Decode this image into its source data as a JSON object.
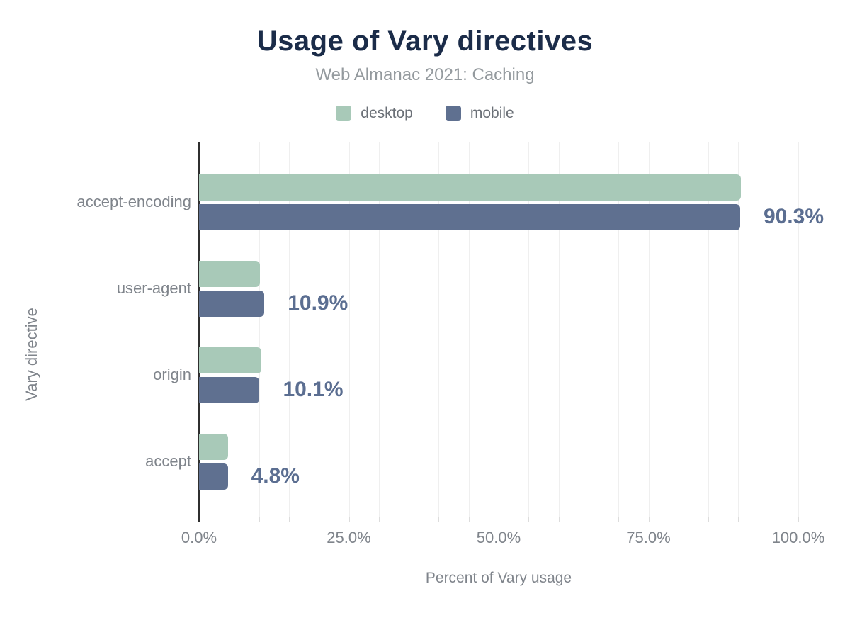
{
  "header": {
    "title": "Usage of Vary directives",
    "subtitle": "Web Almanac 2021: Caching"
  },
  "legend": [
    {
      "label": "desktop",
      "color": "#a8c9b8"
    },
    {
      "label": "mobile",
      "color": "#5f7090"
    }
  ],
  "axes": {
    "xlabel": "Percent of Vary usage",
    "ylabel": "Vary directive"
  },
  "chart_data": {
    "type": "bar",
    "orientation": "horizontal",
    "title": "Usage of Vary directives",
    "subtitle": "Web Almanac 2021: Caching",
    "categories": [
      "accept-encoding",
      "user-agent",
      "origin",
      "accept"
    ],
    "series": [
      {
        "name": "desktop",
        "color": "#a8c9b8",
        "values": [
          90.4,
          10.2,
          10.4,
          4.9
        ]
      },
      {
        "name": "mobile",
        "color": "#5f7090",
        "values": [
          90.3,
          10.9,
          10.1,
          4.8
        ]
      }
    ],
    "value_labels": [
      "90.3%",
      "10.9%",
      "10.1%",
      "4.8%"
    ],
    "value_label_series": "mobile",
    "xlabel": "Percent of Vary usage",
    "ylabel": "Vary directive",
    "xlim": [
      0,
      100
    ],
    "x_ticks": [
      {
        "label": "0.0%",
        "value": 0
      },
      {
        "label": "25.0%",
        "value": 25
      },
      {
        "label": "50.0%",
        "value": 50
      },
      {
        "label": "75.0%",
        "value": 75
      },
      {
        "label": "100.0%",
        "value": 100
      }
    ],
    "grid": true,
    "grid_step_pct": 5,
    "legend_position": "top"
  },
  "colors": {
    "title": "#1b2c49",
    "subtitle": "#949a9e",
    "label_gray": "#7f848b",
    "value_label": "#5b6e91",
    "grid": "#efefef",
    "tick": "#dcdcdc",
    "axis_line": "#2f2f2f",
    "background": "#ffffff"
  }
}
